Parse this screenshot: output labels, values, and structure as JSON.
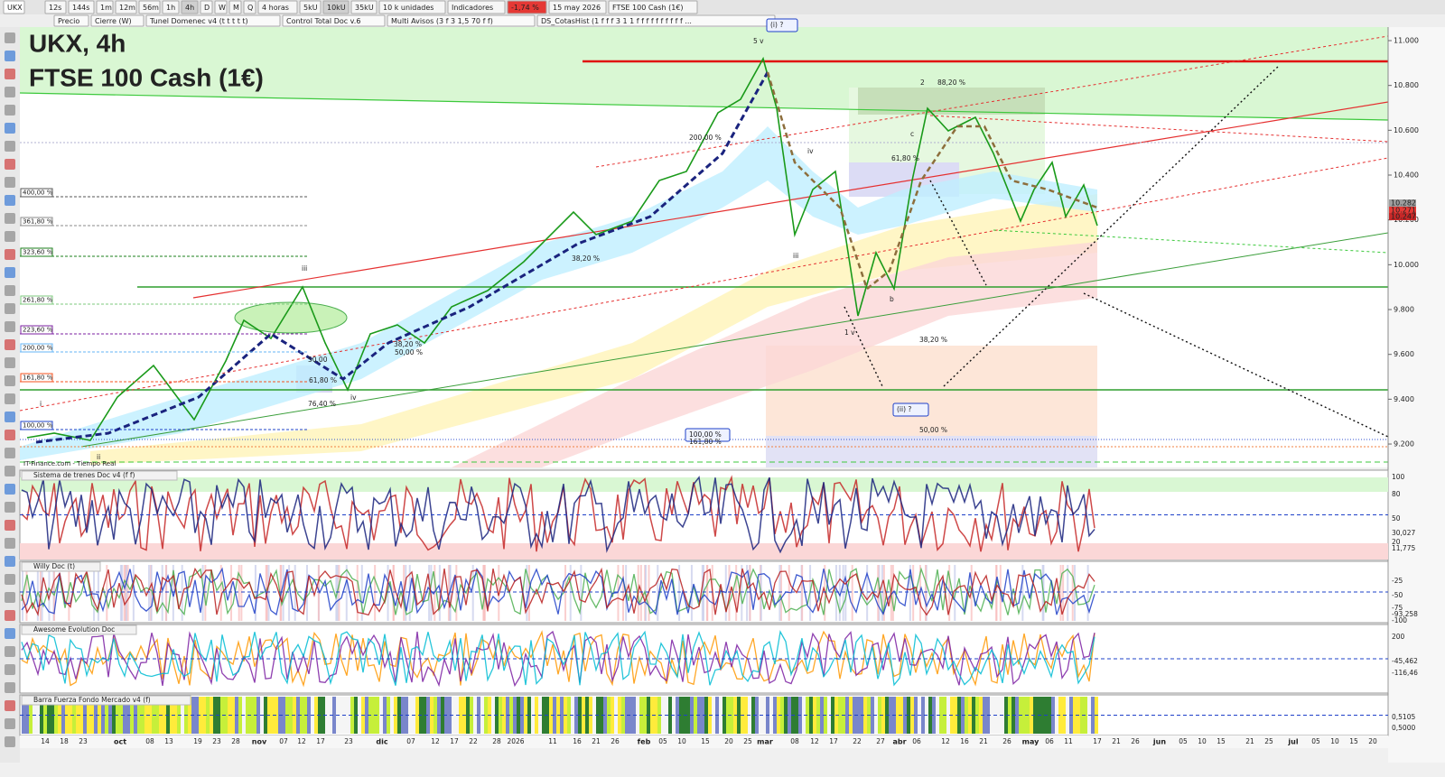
{
  "toolbar": {
    "symbol": "UKX",
    "timeframes": [
      "12s",
      "144s",
      "1m",
      "12m",
      "56m",
      "1h",
      "4h",
      "D",
      "W",
      "M",
      "Q"
    ],
    "period": "4 horas",
    "units": [
      "5kU",
      "10kU",
      "35kU"
    ],
    "units_menu": "10 k unidades",
    "indicators": "Indicadores",
    "change": "-1,74 %",
    "date": "15 may 2026",
    "instrument": "FTSE 100 Cash (1€)"
  },
  "indicator_bar": [
    "Precio",
    "Cierre (W)",
    "Tunel Domenec v4 (t t t t t)",
    "Control Total Doc v.6",
    "Multi Avisos (3 f 3 1,5 70 f f)",
    "DS_CotasHist (1 f f f 3 1 1 f f f f f f f f f f ..."
  ],
  "chart": {
    "title": "UKX, 4h",
    "subtitle": "FTSE 100 Cash (1€)",
    "source": "IT-Finance.com - Tiempo Real",
    "price_axis": [
      "11.000",
      "10.800",
      "10.600",
      "10.400",
      "10.200",
      "10.000",
      "9.800",
      "9.600",
      "9.400",
      "9.200"
    ],
    "price_tags": [
      "10.282",
      "10.271",
      "10.247"
    ],
    "fib_left": [
      "400,00 %",
      "361,80 %",
      "323,60 %",
      "261,80 %",
      "223,60 %",
      "200,00 %",
      "161,80 %",
      "100,00 %"
    ],
    "annotations": [
      "(i) ?",
      "5 v",
      "2",
      "88,20 %",
      "61,80 %",
      "200,00 %",
      "38,20 %",
      "38,20 %",
      "50,00 %",
      "50,00",
      "61,80 %",
      "76,40 %",
      "iv",
      "iii",
      "1 v",
      "b",
      "c",
      "iii",
      "iv",
      "38,20 %",
      "(ii) ?",
      "50,00 %",
      "100,00 %",
      "161,80 %",
      "i",
      "ii"
    ],
    "dates": [
      "14",
      "18",
      "23",
      "oct",
      "08",
      "13",
      "19",
      "23",
      "28",
      "nov",
      "07",
      "12",
      "17",
      "23",
      "dic",
      "07",
      "12",
      "17",
      "22",
      "28",
      "2026",
      "11",
      "16",
      "21",
      "26",
      "feb",
      "05",
      "10",
      "15",
      "20",
      "25",
      "mar",
      "08",
      "12",
      "17",
      "22",
      "27",
      "abr",
      "06",
      "12",
      "16",
      "21",
      "26",
      "may",
      "06",
      "11",
      "17",
      "21",
      "26",
      "jun",
      "05",
      "10",
      "15",
      "21",
      "25",
      "jul",
      "05",
      "10",
      "15",
      "20"
    ]
  },
  "panels": [
    {
      "title": "Sistema de trenes Doc v4 (f f)",
      "axis": [
        "100",
        "80",
        "50",
        "30,027",
        "20",
        "11,775"
      ]
    },
    {
      "title": "Willy Doc (t)",
      "axis": [
        "-25",
        "-50",
        "-75",
        "-93,258",
        "-100"
      ]
    },
    {
      "title": "Awesome Evolution Doc",
      "axis": [
        "200",
        "-45,462",
        "-116,46"
      ]
    },
    {
      "title": "Barra Fuerza Fondo Mercado v4 (f)",
      "axis": [
        "0,5105",
        "0,5000"
      ]
    }
  ]
}
